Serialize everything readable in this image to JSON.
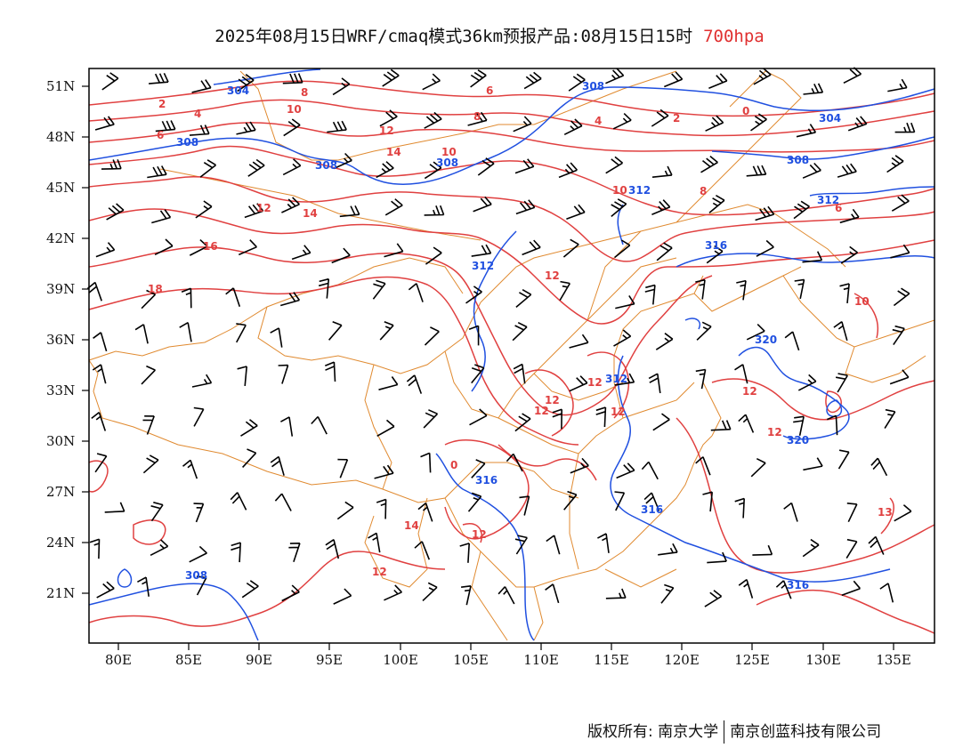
{
  "title": {
    "main": "2025年08月15日WRF/cmaq模式36km预报产品:08月15日15时",
    "level": "700hpa"
  },
  "axes": {
    "lon_ticks": [
      "80E",
      "85E",
      "90E",
      "95E",
      "100E",
      "105E",
      "110E",
      "115E",
      "120E",
      "125E",
      "130E",
      "135E"
    ],
    "lat_ticks": [
      "51N",
      "48N",
      "45N",
      "42N",
      "39N",
      "36N",
      "33N",
      "30N",
      "27N",
      "24N",
      "21N"
    ]
  },
  "colors": {
    "temperature_contour": "#e04040",
    "geopotential_contour": "#2050e0",
    "boundaries": "#e08a30",
    "wind_barb": "#000000"
  },
  "contour_labels": {
    "temperature": [
      "2",
      "4",
      "6",
      "8",
      "10",
      "12",
      "14",
      "16",
      "18",
      "10",
      "8",
      "6",
      "4",
      "2",
      "0",
      "12",
      "14",
      "12",
      "10",
      "8",
      "6",
      "12",
      "12",
      "12",
      "12",
      "10",
      "12",
      "0",
      "12",
      "14",
      "12",
      "12",
      "13"
    ],
    "geopotential": [
      "304",
      "308",
      "308",
      "308",
      "308",
      "304",
      "308",
      "312",
      "312",
      "316",
      "312",
      "320",
      "320",
      "312",
      "316",
      "316",
      "308"
    ]
  },
  "footer": {
    "left": "版权所有: 南京大学",
    "right": "南京创蓝科技有限公司"
  }
}
